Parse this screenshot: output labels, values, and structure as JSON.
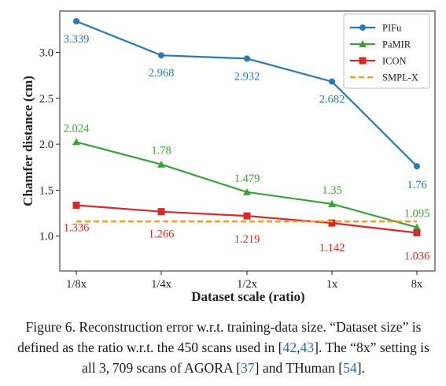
{
  "chart_data": {
    "type": "line",
    "categories": [
      "1/8x",
      "1/4x",
      "1/2x",
      "1x",
      "8x"
    ],
    "xlabel": "Dataset scale (ratio)",
    "ylabel": "Chamfer distance (cm)",
    "ylim": [
      0.62,
      3.45
    ],
    "yticks": [
      "1.0",
      "1.5",
      "2.0",
      "2.5",
      "3.0"
    ],
    "grid": false,
    "legend_position": "top-right",
    "series": [
      {
        "name": "PIFu",
        "color": "#2a78b4",
        "marker": "circle",
        "linestyle": "solid",
        "values": [
          3.339,
          2.968,
          2.932,
          2.682,
          1.76
        ],
        "labels": [
          "3.339",
          "2.968",
          "2.932",
          "2.682",
          "1.76"
        ]
      },
      {
        "name": "PaMIR",
        "color": "#3ba23a",
        "marker": "triangle",
        "linestyle": "solid",
        "values": [
          2.024,
          1.78,
          1.479,
          1.35,
          1.095
        ],
        "labels": [
          "2.024",
          "1.78",
          "1.479",
          "1.35",
          "1.095"
        ]
      },
      {
        "name": "ICON",
        "color": "#d62a2a",
        "marker": "square",
        "linestyle": "solid",
        "values": [
          1.336,
          1.266,
          1.219,
          1.142,
          1.036
        ],
        "labels": [
          "1.336",
          "1.266",
          "1.219",
          "1.142",
          "1.036"
        ]
      },
      {
        "name": "SMPL-X",
        "color": "#f29d24",
        "marker": "none",
        "linestyle": "dashed",
        "values": [
          1.16,
          1.16,
          1.16,
          1.16,
          1.16
        ],
        "labels": []
      }
    ]
  },
  "caption": {
    "prefix": "Figure 6. Reconstruction error w.r.t. training-data size. “Dataset size” is defined as the ratio w.r.t. the 450 scans used in [",
    "cite1": "42",
    "sep": ",",
    "cite2": "43",
    "mid": "]. The “8x” setting is all 3, 709 scans of AGORA [",
    "cite3": "37",
    "mid2": "] and THuman [",
    "cite4": "54",
    "suffix": "]."
  }
}
